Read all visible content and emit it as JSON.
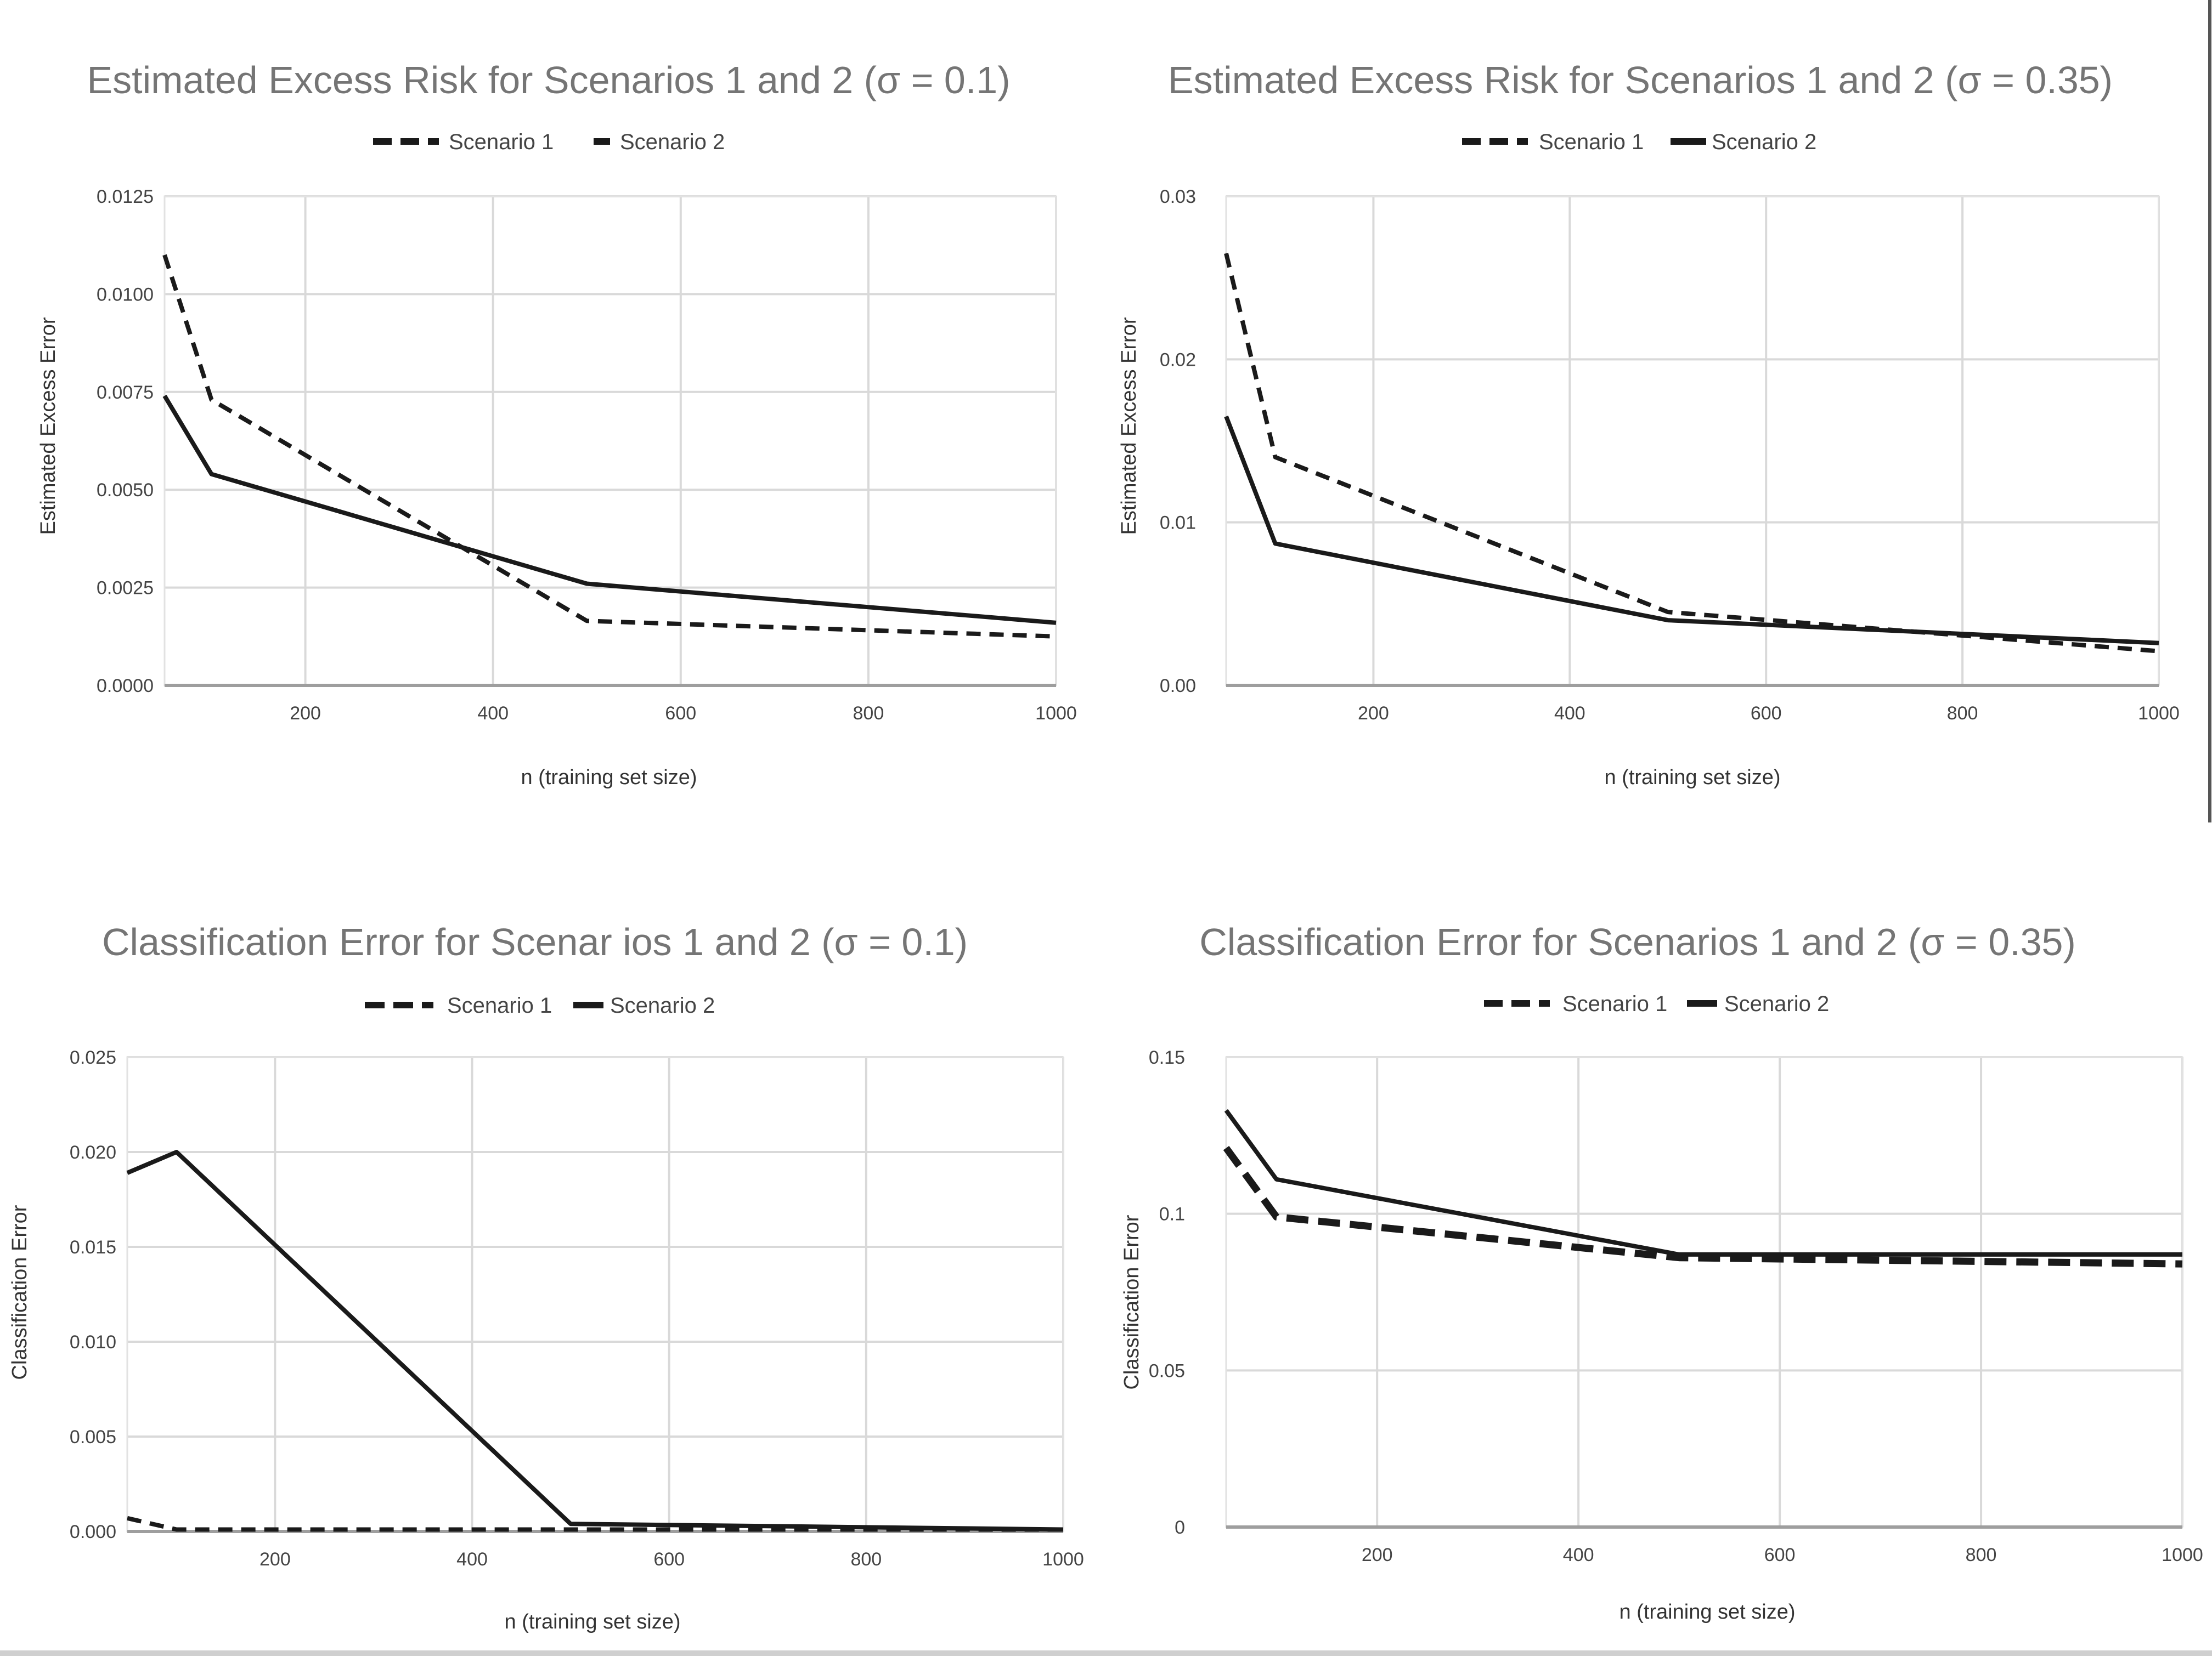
{
  "chart_data": [
    {
      "type": "line",
      "title": "Estimated Excess Risk for Scenarios 1 and 2 (σ = 0.1)",
      "xlabel": "n (training set size)",
      "ylabel": "Estimated Excess Error",
      "xlim": [
        50,
        1000
      ],
      "ylim": [
        0,
        0.0125
      ],
      "xticks": [
        200,
        400,
        600,
        800,
        1000
      ],
      "xtick_labels": [
        "200",
        "400",
        "600",
        "800",
        "1000"
      ],
      "yticks": [
        0,
        0.0025,
        0.005,
        0.0075,
        0.01,
        0.0125
      ],
      "ytick_labels": [
        "0.0000",
        "0.0025",
        "0.0050",
        "0.0075",
        "0.0100",
        "0.0125"
      ],
      "grid": true,
      "legend_position": "top",
      "series": [
        {
          "name": "Scenario 1",
          "style": "dashed",
          "x": [
            50,
            100,
            500,
            1000
          ],
          "y": [
            0.011,
            0.0073,
            0.00165,
            0.00125
          ]
        },
        {
          "name": "Scenario 2",
          "style": "solid",
          "x": [
            50,
            100,
            500,
            1000
          ],
          "y": [
            0.0074,
            0.0054,
            0.0026,
            0.0016
          ]
        }
      ]
    },
    {
      "type": "line",
      "title": "Estimated Excess Risk for Scenarios 1 and 2 (σ = 0.35)",
      "xlabel": "n (training set size)",
      "ylabel": "Estimated Excess Error",
      "xlim": [
        50,
        1000
      ],
      "ylim": [
        0,
        0.03
      ],
      "xticks": [
        200,
        400,
        600,
        800,
        1000
      ],
      "xtick_labels": [
        "200",
        "400",
        "600",
        "800",
        "1000"
      ],
      "yticks": [
        0,
        0.01,
        0.02,
        0.03
      ],
      "ytick_labels": [
        "0.00",
        "0.01",
        "0.02",
        "0.03"
      ],
      "grid": true,
      "legend_position": "top",
      "series": [
        {
          "name": "Scenario 1",
          "style": "dashed",
          "x": [
            50,
            100,
            500,
            1000
          ],
          "y": [
            0.0265,
            0.014,
            0.0045,
            0.0021
          ]
        },
        {
          "name": "Scenario 2",
          "style": "solid",
          "x": [
            50,
            100,
            500,
            1000
          ],
          "y": [
            0.0165,
            0.0087,
            0.004,
            0.0026
          ]
        }
      ]
    },
    {
      "type": "line",
      "title": "Classification Error for Scenar ios 1 and 2 (σ = 0.1)",
      "xlabel": "n (training set size)",
      "ylabel": "Classification Error",
      "xlim": [
        50,
        1000
      ],
      "ylim": [
        0,
        0.025
      ],
      "xticks": [
        200,
        400,
        600,
        800,
        1000
      ],
      "xtick_labels": [
        "200",
        "400",
        "600",
        "800",
        "1000"
      ],
      "yticks": [
        0,
        0.005,
        0.01,
        0.015,
        0.02,
        0.025
      ],
      "ytick_labels": [
        "0.000",
        "0.005",
        "0.010",
        "0.015",
        "0.020",
        "0.025"
      ],
      "grid": true,
      "legend_position": "top",
      "series": [
        {
          "name": "Scenario 1",
          "style": "dashed",
          "x": [
            50,
            100,
            500,
            1000
          ],
          "y": [
            0.0007,
            0.0001,
            0.0001,
            0.0001
          ]
        },
        {
          "name": "Scenario 2",
          "style": "solid",
          "x": [
            50,
            100,
            500,
            1000
          ],
          "y": [
            0.0189,
            0.02,
            0.0004,
            0.0001
          ]
        }
      ]
    },
    {
      "type": "line",
      "title": "Classification Error for Scenarios 1 and 2 (σ = 0.35)",
      "xlabel": "n (training set size)",
      "ylabel": "Classification Error",
      "xlim": [
        50,
        1000
      ],
      "ylim": [
        0,
        0.15
      ],
      "xticks": [
        200,
        400,
        600,
        800,
        1000
      ],
      "xtick_labels": [
        "200",
        "400",
        "600",
        "800",
        "1000"
      ],
      "yticks": [
        0,
        0.05,
        0.1,
        0.15
      ],
      "ytick_labels": [
        "0",
        "0.05",
        "0.1",
        "0.15"
      ],
      "grid": true,
      "legend_position": "top",
      "series": [
        {
          "name": "Scenario 1",
          "style": "dashed",
          "x": [
            50,
            100,
            500,
            1000
          ],
          "y": [
            0.121,
            0.099,
            0.086,
            0.084
          ]
        },
        {
          "name": "Scenario 2",
          "style": "solid",
          "x": [
            50,
            100,
            500,
            1000
          ],
          "y": [
            0.133,
            0.111,
            0.087,
            0.087
          ]
        }
      ]
    }
  ]
}
